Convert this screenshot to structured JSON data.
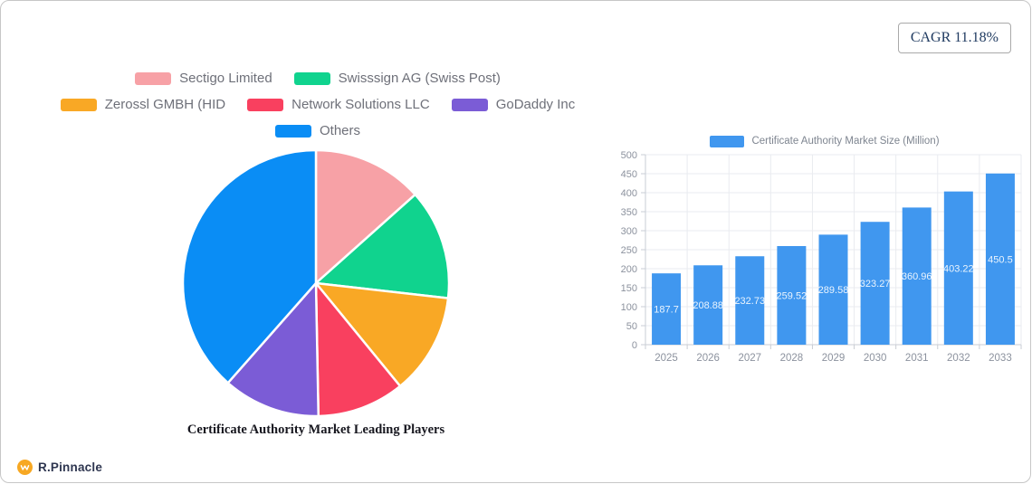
{
  "cagr": {
    "label": "CAGR 11.18%"
  },
  "brand": {
    "name": "R.Pinnacle",
    "icon_color": "#f7a823"
  },
  "chart_data": [
    {
      "type": "pie",
      "title": "Certificate Authority Market Leading Players",
      "direction": "clockwise",
      "start_angle": "top",
      "slices": [
        {
          "label": "Sectigo Limited",
          "value": 13.4,
          "color": "#f7a1a6"
        },
        {
          "label": "Swisssign AG (Swiss Post)",
          "value": 13.4,
          "color": "#10d38e"
        },
        {
          "label": "Zerossl GMBH (HID",
          "value": 12.3,
          "color": "#f9a825"
        },
        {
          "label": "Network Solutions LLC",
          "value": 10.6,
          "color": "#f9405f"
        },
        {
          "label": "GoDaddy Inc",
          "value": 11.8,
          "color": "#7b5cd6"
        },
        {
          "label": "Others",
          "value": 38.5,
          "color": "#0a8df5"
        }
      ],
      "legend_rows": [
        [
          0,
          1
        ],
        [
          2,
          3,
          4
        ],
        [
          5
        ]
      ],
      "legend_position": "top"
    },
    {
      "type": "bar",
      "legend_label": "Certificate Authority Market Size (Million)",
      "categories": [
        "2025",
        "2026",
        "2027",
        "2028",
        "2029",
        "2030",
        "2031",
        "2032",
        "2033"
      ],
      "values": [
        187.7,
        208.88,
        232.73,
        259.52,
        289.58,
        323.27,
        360.96,
        403.22,
        450.5
      ],
      "bar_color": "#4097ef",
      "value_label_color": "#eaf4fe",
      "ylim": [
        0,
        500
      ],
      "ytick_step": 50,
      "grid": true,
      "legend_position": "top"
    }
  ]
}
